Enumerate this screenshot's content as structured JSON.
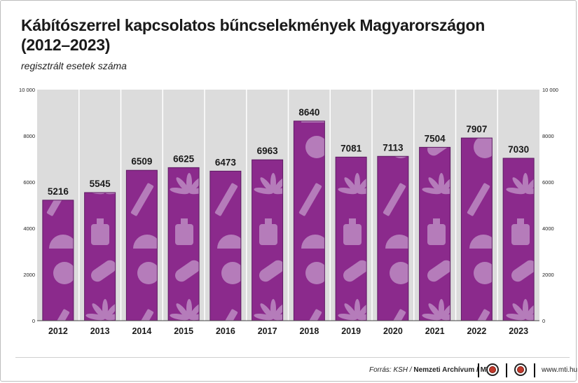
{
  "header": {
    "title": "Kábítószerrel kapcsolatos bűncselekmények Magyarországon (2012–2023)",
    "subtitle": "regisztrált esetek száma"
  },
  "chart_data": {
    "type": "bar",
    "title": "Kábítószerrel kapcsolatos bűncselekmények Magyarországon (2012–2023)",
    "subtitle": "regisztrált esetek száma",
    "categories": [
      "2012",
      "2013",
      "2014",
      "2015",
      "2016",
      "2017",
      "2018",
      "2019",
      "2020",
      "2021",
      "2022",
      "2023"
    ],
    "values": [
      5216,
      5545,
      6509,
      6625,
      6473,
      6963,
      8640,
      7081,
      7113,
      7504,
      7907,
      7030
    ],
    "value_labels": [
      "5216",
      "5545",
      "6509",
      "6625",
      "6473",
      "6963",
      "8640",
      "7081",
      "7113",
      "7504",
      "7907",
      "7030"
    ],
    "ylim": [
      0,
      10000
    ],
    "y_ticks": [
      0,
      2000,
      4000,
      6000,
      8000,
      10000
    ],
    "y_tick_labels": [
      "0",
      "2000",
      "4000",
      "6000",
      "8000",
      "10 000"
    ],
    "xlabel": "",
    "ylabel": "",
    "grid": "vertical separators",
    "legend": "none",
    "colors": {
      "bar": "#8b2a8c",
      "bar_border": "#5e1a63",
      "pattern": "#b57cba",
      "panel": "#dcdcdc"
    }
  },
  "footer": {
    "source_prefix": "Forrás: KSH / ",
    "source_bold": "Nemzeti Archívum / MTI",
    "website": "www.mti.hu"
  }
}
